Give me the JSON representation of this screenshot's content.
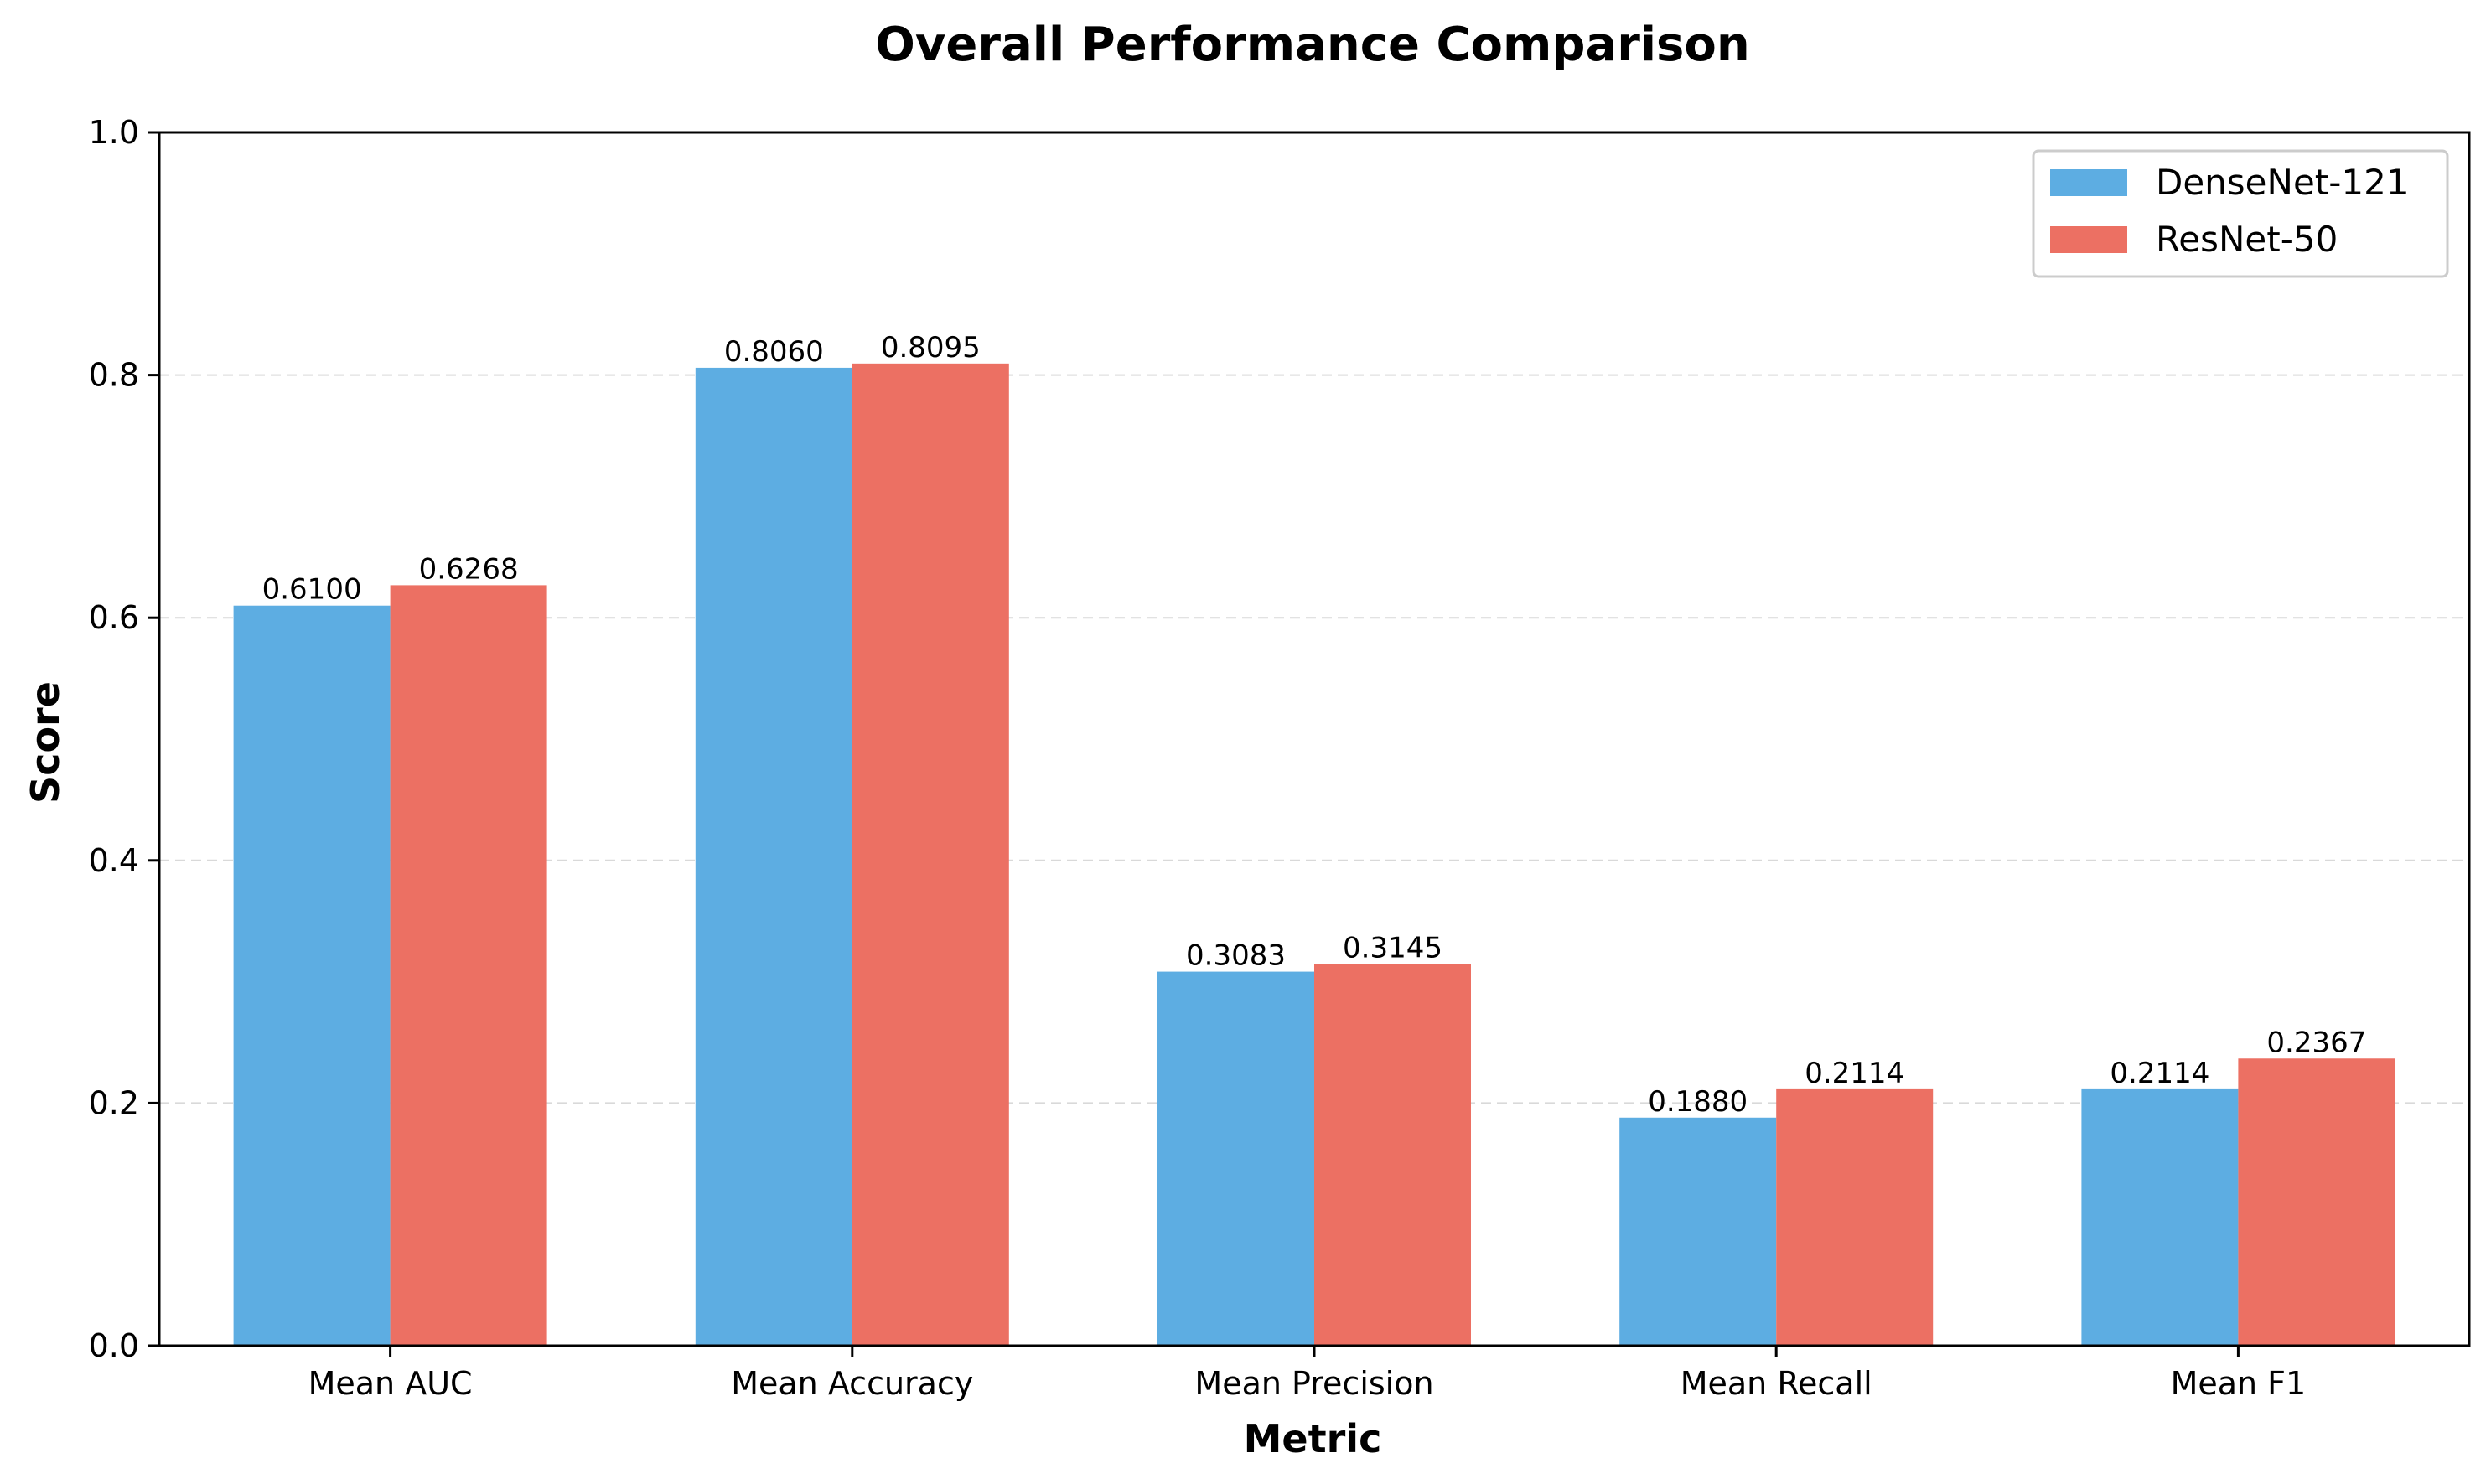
{
  "chart_data": {
    "type": "bar",
    "title": "Overall Performance Comparison",
    "xlabel": "Metric",
    "ylabel": "Score",
    "ylim": [
      0,
      1.0
    ],
    "yticks": [
      "0.0",
      "0.2",
      "0.4",
      "0.6",
      "0.8",
      "1.0"
    ],
    "grid": "horizontal dashed",
    "legend_position": "top-right",
    "categories": [
      "Mean AUC",
      "Mean Accuracy",
      "Mean Precision",
      "Mean Recall",
      "Mean F1"
    ],
    "series": [
      {
        "name": "DenseNet-121",
        "color": "#5DADE2",
        "values": [
          0.61,
          0.806,
          0.3083,
          0.188,
          0.2114
        ],
        "labels": [
          "0.6100",
          "0.8060",
          "0.3083",
          "0.1880",
          "0.2114"
        ]
      },
      {
        "name": "ResNet-50",
        "color": "#EC7063",
        "values": [
          0.6268,
          0.8095,
          0.3145,
          0.2114,
          0.2367
        ],
        "labels": [
          "0.6268",
          "0.8095",
          "0.3145",
          "0.2114",
          "0.2367"
        ]
      }
    ]
  }
}
